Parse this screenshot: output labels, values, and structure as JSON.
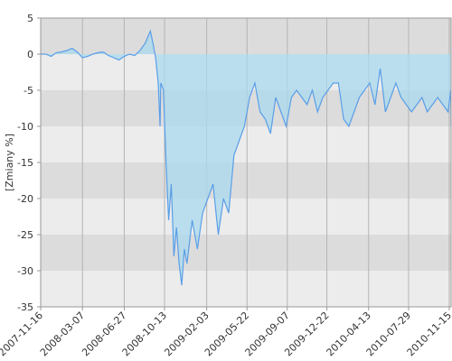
{
  "chart_data": {
    "type": "area",
    "y_label": "[Zmiany %]",
    "color": "#5a9ee8",
    "fill": "#a9d9ee",
    "grid": true,
    "ylim": [
      -35,
      5
    ],
    "yticks": [
      5,
      0,
      -5,
      -10,
      -15,
      -20,
      -25,
      -30,
      -35
    ],
    "xlim": [
      "2007-11-16",
      "2010-11-20"
    ],
    "xticks": [
      "2007-11-16",
      "2008-03-07",
      "2008-06-27",
      "2008-10-13",
      "2009-02-03",
      "2009-05-22",
      "2009-09-07",
      "2009-12-22",
      "2010-04-13",
      "2010-07-29",
      "2010-11-15"
    ],
    "x": [
      "2007-11-16",
      "2007-11-30",
      "2007-12-14",
      "2007-12-28",
      "2008-01-11",
      "2008-01-25",
      "2008-02-08",
      "2008-02-22",
      "2008-03-07",
      "2008-03-21",
      "2008-04-04",
      "2008-04-18",
      "2008-05-02",
      "2008-05-16",
      "2008-05-30",
      "2008-06-13",
      "2008-06-27",
      "2008-07-11",
      "2008-07-25",
      "2008-08-08",
      "2008-08-22",
      "2008-09-05",
      "2008-09-12",
      "2008-09-19",
      "2008-09-26",
      "2008-10-01",
      "2008-10-03",
      "2008-10-10",
      "2008-10-17",
      "2008-10-24",
      "2008-10-31",
      "2008-11-07",
      "2008-11-14",
      "2008-11-21",
      "2008-11-28",
      "2008-12-05",
      "2008-12-12",
      "2008-12-26",
      "2009-01-09",
      "2009-01-23",
      "2009-02-06",
      "2009-02-20",
      "2009-03-06",
      "2009-03-20",
      "2009-04-03",
      "2009-04-17",
      "2009-05-01",
      "2009-05-15",
      "2009-05-29",
      "2009-06-12",
      "2009-06-26",
      "2009-07-10",
      "2009-07-24",
      "2009-08-07",
      "2009-08-21",
      "2009-09-04",
      "2009-09-18",
      "2009-10-02",
      "2009-10-16",
      "2009-10-30",
      "2009-11-13",
      "2009-11-27",
      "2009-12-11",
      "2009-12-25",
      "2010-01-08",
      "2010-01-22",
      "2010-02-05",
      "2010-02-19",
      "2010-03-05",
      "2010-03-19",
      "2010-04-02",
      "2010-04-16",
      "2010-04-30",
      "2010-05-14",
      "2010-05-28",
      "2010-06-11",
      "2010-06-25",
      "2010-07-09",
      "2010-07-23",
      "2010-08-06",
      "2010-08-20",
      "2010-09-03",
      "2010-09-17",
      "2010-10-01",
      "2010-10-15",
      "2010-10-29",
      "2010-11-12",
      "2010-11-19",
      "2010-11-20"
    ],
    "values": [
      0,
      0,
      -0.3,
      0.2,
      0.3,
      0.5,
      0.8,
      0.3,
      -0.5,
      -0.3,
      0,
      0.2,
      0.3,
      -0.2,
      -0.5,
      -0.8,
      -0.3,
      0,
      -0.2,
      0.5,
      1.5,
      3.2,
      1.5,
      -0.5,
      -4,
      -10,
      -4,
      -5,
      -15,
      -23,
      -18,
      -28,
      -24,
      -29,
      -32,
      -27,
      -29,
      -23,
      -27,
      -22,
      -20,
      -18,
      -25,
      -20,
      -22,
      -14,
      -12,
      -10,
      -6,
      -4,
      -8,
      -9,
      -11,
      -6,
      -8,
      -10,
      -6,
      -5,
      -6,
      -7,
      -5,
      -8,
      -6,
      -5,
      -4,
      -4,
      -9,
      -10,
      -8,
      -6,
      -5,
      -4,
      -7,
      -2,
      -8,
      -6,
      -4,
      -6,
      -7,
      -8,
      -7,
      -6,
      -8,
      -7,
      -6,
      -7,
      -8,
      -5,
      -10
    ]
  }
}
